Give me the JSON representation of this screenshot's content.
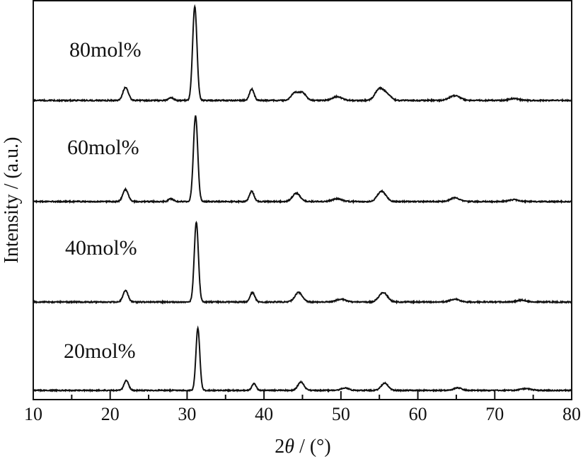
{
  "chart_data": {
    "type": "line",
    "xlabel_parts": [
      "2",
      "θ",
      " / (°)"
    ],
    "ylabel": "Intensity / (a.u.)",
    "xlim": [
      10,
      80
    ],
    "x_ticks": [
      10,
      20,
      30,
      40,
      50,
      60,
      70,
      80
    ],
    "x_minor_ticks": [
      15,
      25,
      35,
      45,
      55,
      65,
      75
    ],
    "grid": false,
    "legend": "none",
    "line_color": "#111111",
    "series": [
      {
        "name": "80mol%",
        "baseline": 0.07,
        "peaks": [
          [
            22.0,
            0.14,
            0.35
          ],
          [
            27.9,
            0.03,
            0.3
          ],
          [
            31.0,
            0.99,
            0.28
          ],
          [
            38.4,
            0.12,
            0.3
          ],
          [
            44.0,
            0.08,
            0.45
          ],
          [
            45.0,
            0.08,
            0.45
          ],
          [
            49.5,
            0.04,
            0.6
          ],
          [
            55.0,
            0.12,
            0.55
          ],
          [
            56.0,
            0.06,
            0.5
          ],
          [
            64.8,
            0.05,
            0.7
          ],
          [
            72.5,
            0.02,
            0.6
          ]
        ]
      },
      {
        "name": "60mol%",
        "baseline": 0.07,
        "peaks": [
          [
            22.0,
            0.13,
            0.35
          ],
          [
            27.9,
            0.03,
            0.3
          ],
          [
            31.1,
            0.92,
            0.28
          ],
          [
            38.4,
            0.11,
            0.3
          ],
          [
            44.2,
            0.09,
            0.5
          ],
          [
            49.5,
            0.03,
            0.6
          ],
          [
            55.3,
            0.11,
            0.55
          ],
          [
            64.8,
            0.04,
            0.6
          ],
          [
            72.5,
            0.02,
            0.6
          ]
        ]
      },
      {
        "name": "40mol%",
        "baseline": 0.07,
        "peaks": [
          [
            22.0,
            0.12,
            0.33
          ],
          [
            31.2,
            0.84,
            0.27
          ],
          [
            38.5,
            0.1,
            0.3
          ],
          [
            44.5,
            0.1,
            0.5
          ],
          [
            50.0,
            0.03,
            0.6
          ],
          [
            55.5,
            0.1,
            0.55
          ],
          [
            64.8,
            0.03,
            0.6
          ],
          [
            73.5,
            0.02,
            0.6
          ]
        ]
      },
      {
        "name": "20mol%",
        "baseline": 0.07,
        "peaks": [
          [
            22.1,
            0.12,
            0.3
          ],
          [
            31.4,
            0.75,
            0.25
          ],
          [
            38.7,
            0.08,
            0.28
          ],
          [
            44.8,
            0.1,
            0.4
          ],
          [
            50.5,
            0.03,
            0.5
          ],
          [
            55.7,
            0.09,
            0.45
          ],
          [
            65.2,
            0.03,
            0.5
          ],
          [
            74.0,
            0.02,
            0.7
          ]
        ]
      }
    ]
  }
}
